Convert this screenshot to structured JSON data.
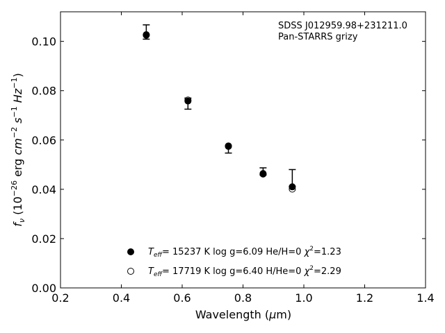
{
  "chart_data": {
    "type": "scatter",
    "annotation": [
      "SDSS J012959.98+231211.0",
      "Pan-STARRS grizy"
    ],
    "xlabel": {
      "pre": "Wavelength (",
      "mu": "μ",
      "post": "m)"
    },
    "ylabel": {
      "main": "f",
      "sub": "ν",
      "rest": " (10",
      "exp1": "−26",
      "unit": " erg ",
      "cm": "cm",
      "exp2": "−2",
      "s": " s",
      "exp3": "−1",
      "hz": " Hz",
      "exp4": "−1",
      "close": ")"
    },
    "xlim": [
      0.2,
      1.4
    ],
    "ylim": [
      0.0,
      0.112
    ],
    "xticks": [
      0.2,
      0.4,
      0.6,
      0.8,
      1.0,
      1.2,
      1.4
    ],
    "xtick_labels": [
      "0.2",
      "0.4",
      "0.6",
      "0.8",
      "1.0",
      "1.2",
      "1.4"
    ],
    "yticks": [
      0.0,
      0.02,
      0.04,
      0.06,
      0.08,
      0.1
    ],
    "ytick_labels": [
      "0.00",
      "0.02",
      "0.04",
      "0.06",
      "0.08",
      "0.10"
    ],
    "grid": false,
    "legend_position": "lower-center",
    "observed": {
      "x": [
        0.482,
        0.619,
        0.752,
        0.866,
        0.962
      ],
      "y": [
        0.1033,
        0.0748,
        0.057,
        0.047,
        0.0412
      ],
      "yerr_low": [
        0.0024,
        0.0023,
        0.0023,
        0.0012,
        0.0002
      ],
      "yerr_high": [
        0.0034,
        0.0022,
        0.0006,
        0.0017,
        0.0068
      ]
    },
    "series": [
      {
        "marker": "filled",
        "label": {
          "T": "T",
          "eff": "eff",
          "text": "= 15237 K  log g=6.09  He/H=0  ",
          "chi": "χ",
          "sq": "2",
          "val": "=1.23"
        },
        "x": [
          0.482,
          0.619,
          0.752,
          0.866,
          0.962
        ],
        "y": [
          0.1025,
          0.0758,
          0.0574,
          0.0464,
          0.041
        ]
      },
      {
        "marker": "open",
        "label": {
          "T": "T",
          "eff": "eff",
          "text": "= 17719 K  log g=6.40  H/He=0  ",
          "chi": "χ",
          "sq": "2",
          "val": "=2.29"
        },
        "x": [
          0.482,
          0.619,
          0.752,
          0.866,
          0.962
        ],
        "y": [
          0.1027,
          0.0762,
          0.0576,
          0.0462,
          0.0401
        ]
      }
    ],
    "colors": {
      "marker": "#000000",
      "open_fill": "#ffffff"
    }
  }
}
